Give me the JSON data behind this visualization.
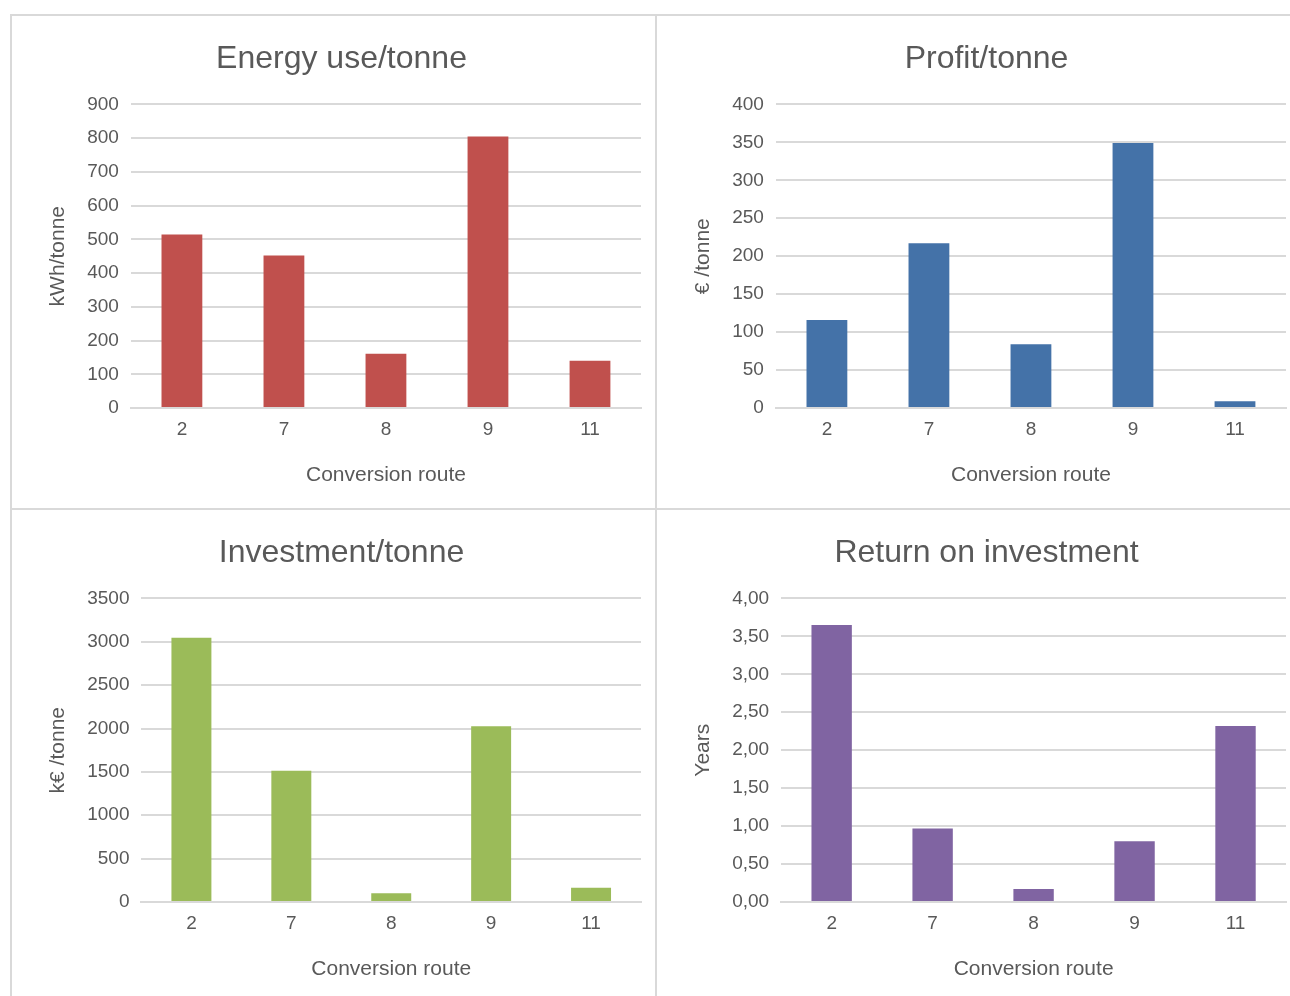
{
  "chart_data": [
    {
      "type": "bar",
      "title": "Energy use/tonne",
      "xlabel": "Conversion route",
      "ylabel": "kWh/tonne",
      "categories": [
        "2",
        "7",
        "8",
        "9",
        "11"
      ],
      "values": [
        514,
        452,
        161,
        805,
        140
      ],
      "color": "#c0504d",
      "ylim": [
        0,
        900
      ],
      "yticks": [
        0,
        100,
        200,
        300,
        400,
        500,
        600,
        700,
        800,
        900
      ],
      "grid": "y",
      "legend": false
    },
    {
      "type": "bar",
      "title": "Profit/tonne",
      "xlabel": "Conversion route",
      "ylabel": "€ /tonne",
      "categories": [
        "2",
        "7",
        "8",
        "9",
        "11"
      ],
      "values": [
        116,
        217,
        84,
        349,
        9
      ],
      "color": "#4472a8",
      "ylim": [
        0,
        400
      ],
      "yticks": [
        0,
        50,
        100,
        150,
        200,
        250,
        300,
        350,
        400
      ],
      "grid": "y",
      "legend": false
    },
    {
      "type": "bar",
      "title": "Investment/tonne",
      "xlabel": "Conversion route",
      "ylabel": "k€ /tonne",
      "categories": [
        "2",
        "7",
        "8",
        "9",
        "11"
      ],
      "values": [
        3047,
        1514,
        101,
        2025,
        164
      ],
      "color": "#9bbb59",
      "ylim": [
        0,
        3500
      ],
      "yticks": [
        0,
        500,
        1000,
        1500,
        2000,
        2500,
        3000,
        3500
      ],
      "grid": "y",
      "legend": false
    },
    {
      "type": "bar",
      "title": "Return on investment",
      "xlabel": "Conversion route",
      "ylabel": "Years",
      "categories": [
        "2",
        "7",
        "8",
        "9",
        "11"
      ],
      "values": [
        3.65,
        0.97,
        0.17,
        0.8,
        2.32
      ],
      "color": "#8064a2",
      "ylim": [
        0,
        4
      ],
      "yticks": [
        {
          "value": 0,
          "label": "0,00"
        },
        {
          "value": 0.5,
          "label": "0,50"
        },
        {
          "value": 1,
          "label": "1,00"
        },
        {
          "value": 1.5,
          "label": "1,50"
        },
        {
          "value": 2,
          "label": "2,00"
        },
        {
          "value": 2.5,
          "label": "2,50"
        },
        {
          "value": 3,
          "label": "3,00"
        },
        {
          "value": 3.5,
          "label": "3,50"
        },
        {
          "value": 4,
          "label": "4,00"
        }
      ],
      "grid": "y",
      "legend": false
    }
  ]
}
